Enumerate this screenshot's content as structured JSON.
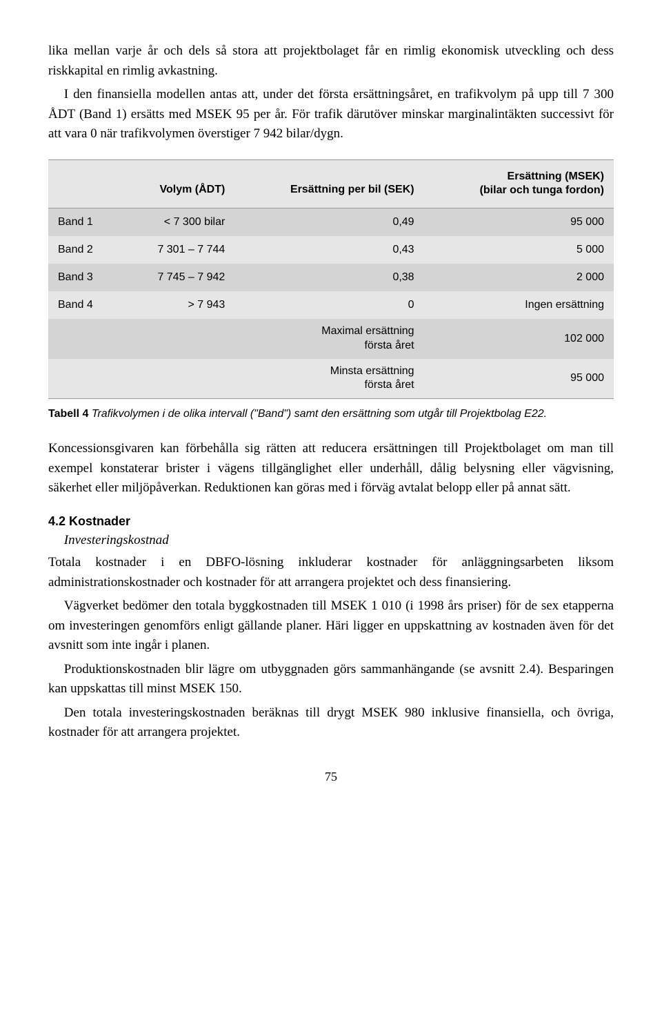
{
  "intro": {
    "p1": "lika mellan varje år och dels så stora att projektbolaget får en rimlig ekonomisk utveckling och dess riskkapital en rimlig avkastning.",
    "p2": "I den finansiella modellen antas att, under det första ersättningsåret, en trafikvolym på upp till 7 300 ÅDT (Band 1) ersätts med MSEK 95 per år. För trafik därutöver minskar marginalintäkten successivt för att vara 0 när trafikvolymen överstiger 7 942 bilar/dygn."
  },
  "table": {
    "headers": {
      "col1": "",
      "col2": "Volym (ÅDT)",
      "col3": "Ersättning per bil (SEK)",
      "col4a": "Ersättning (MSEK)",
      "col4b": "(bilar och tunga fordon)"
    },
    "rows": [
      {
        "band": "Band 1",
        "volym": "< 7 300 bilar",
        "perbil": "0,49",
        "msek": "95 000"
      },
      {
        "band": "Band 2",
        "volym": "7 301 – 7 744",
        "perbil": "0,43",
        "msek": "5 000"
      },
      {
        "band": "Band 3",
        "volym": "7 745 – 7 942",
        "perbil": "0,38",
        "msek": "2 000"
      },
      {
        "band": "Band 4",
        "volym": "> 7 943",
        "perbil": "0",
        "msek": "Ingen ersättning"
      }
    ],
    "summary": [
      {
        "label_a": "Maximal ersättning",
        "label_b": "första året",
        "msek": "102 000"
      },
      {
        "label_a": "Minsta ersättning",
        "label_b": "första året",
        "msek": "95 000"
      }
    ],
    "caption_label": "Tabell 4",
    "caption_text": " Trafikvolymen i de olika intervall (\"Band\") samt den ersättning som utgår till Projektbolag E22."
  },
  "mid": {
    "p1": "Koncessionsgivaren kan förbehålla sig rätten att reducera ersättningen till Projektbolaget om man till exempel konstaterar brister i vägens tillgänglighet eller underhåll, dålig belysning eller vägvisning, säkerhet eller miljöpåverkan. Reduktionen kan göras med i förväg avtalat belopp eller på annat sätt."
  },
  "section": {
    "heading": "4.2 Kostnader",
    "subheading": "Investeringskostnad",
    "p1": "Totala kostnader i en DBFO-lösning inkluderar kostnader för anläggningsarbeten liksom administrationskostnader och kostnader för att arrangera projektet och dess finansiering.",
    "p2": "Vägverket bedömer den totala byggkostnaden till MSEK 1 010 (i 1998 års priser) för de sex etapperna om investeringen genomförs enligt gällande planer. Häri ligger en uppskattning av kostnaden även för det avsnitt som inte ingår i planen.",
    "p3": "Produktionskostnaden blir lägre om utbyggnaden görs sammanhängande (se avsnitt 2.4). Besparingen kan uppskattas till minst MSEK 150.",
    "p4": "Den totala investeringskostnaden beräknas till drygt MSEK 980 inklusive finansiella, och övriga, kostnader för att arrangera projektet."
  },
  "page_number": "75"
}
